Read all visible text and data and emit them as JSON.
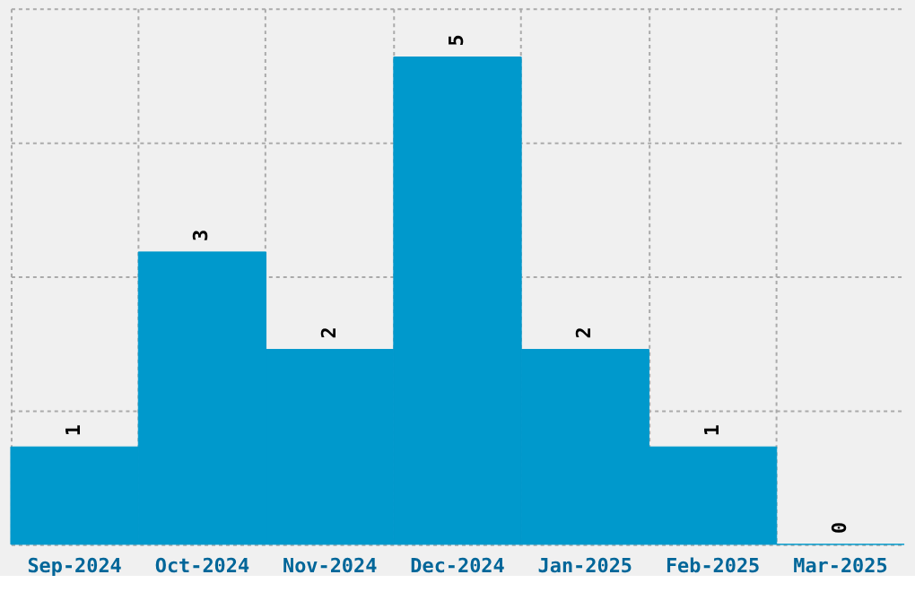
{
  "chart_data": {
    "type": "bar",
    "categories": [
      "Sep-2024",
      "Oct-2024",
      "Nov-2024",
      "Dec-2024",
      "Jan-2025",
      "Feb-2025",
      "Mar-2025"
    ],
    "values": [
      1,
      3,
      2,
      5,
      2,
      1,
      0
    ],
    "color": "#0099cc",
    "ylim": [
      0,
      5.5
    ],
    "yticks": [
      {
        "value": 0,
        "label": null
      },
      {
        "value": 1.375,
        "label": null
      },
      {
        "value": 2.75,
        "label": null
      },
      {
        "value": 4.125,
        "label": null
      },
      {
        "value": 5.5,
        "label": null
      }
    ],
    "tick_labels": "x",
    "grid": true,
    "data_labels": true
  }
}
